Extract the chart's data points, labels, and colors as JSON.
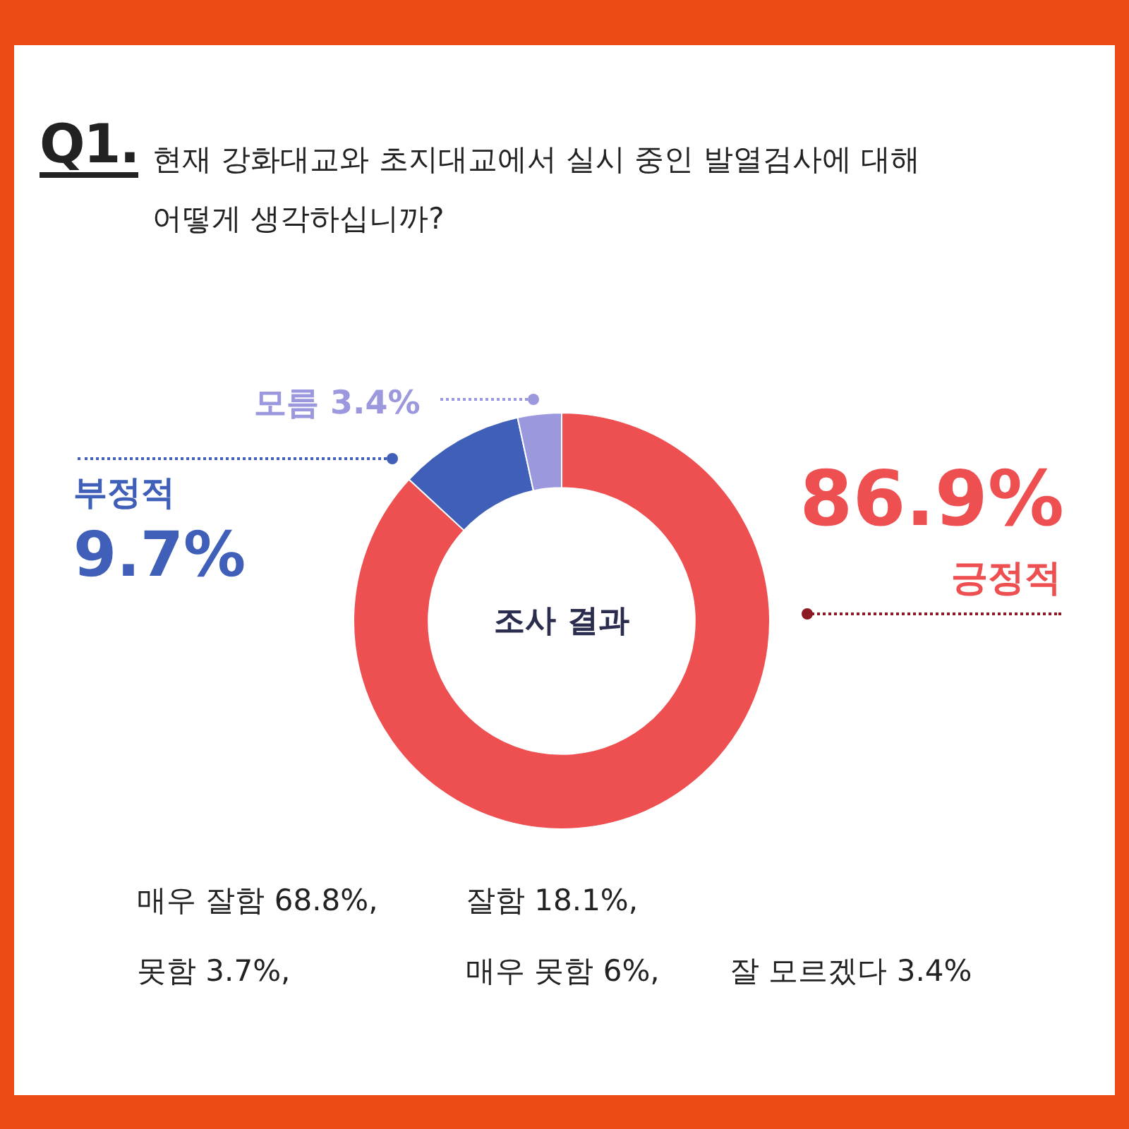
{
  "chart_data": {
    "type": "donut",
    "title": "Q1.",
    "subtitle": "현재 강화대교와 초지대교에서 실시 중인 발열검사에 대해 어떻게 생각하십니까?",
    "categories": [
      "긍정적",
      "부정적",
      "모름"
    ],
    "values": [
      86.9,
      9.7,
      3.4
    ],
    "colors": [
      "#ee4f50",
      "#3f5fb8",
      "#9c98dd"
    ],
    "value_labels": [
      "86.9%",
      "9.7%",
      "3.4%"
    ],
    "legend": false,
    "annotations": [
      "조사 결과",
      "매우 잘함 68.8%,",
      "잘함 18.1%,",
      "못함 3.7%,",
      "매우 못함 6%,",
      "잘 모르겠다 3.4%"
    ]
  }
}
